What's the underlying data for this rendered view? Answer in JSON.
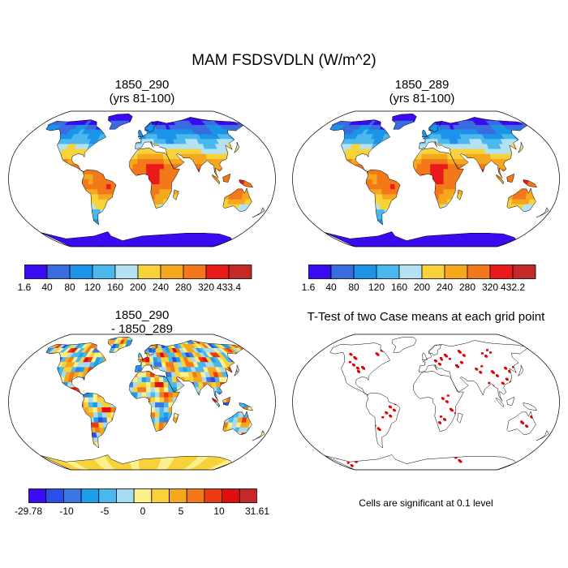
{
  "figure": {
    "title": "MAM FSDSVDLN (W/m^2)"
  },
  "panels": [
    {
      "id": "case1",
      "title_line1": "1850_290",
      "title_line2": "(yrs 81-100)",
      "colorbar": {
        "labels": [
          "1.6",
          "40",
          "80",
          "120",
          "160",
          "200",
          "240",
          "280",
          "320",
          "433.4"
        ],
        "colors": [
          "#3a0bf0",
          "#3a6be0",
          "#1b93e8",
          "#4ab8ec",
          "#b4e2f2",
          "#f7d23a",
          "#f5a81e",
          "#f2781a",
          "#eb1a1a",
          "#c42828"
        ]
      }
    },
    {
      "id": "case2",
      "title_line1": "1850_289",
      "title_line2": "(yrs 81-100)",
      "colorbar": {
        "labels": [
          "1.6",
          "40",
          "80",
          "120",
          "160",
          "200",
          "240",
          "280",
          "320",
          "432.2"
        ],
        "colors": [
          "#3a0bf0",
          "#3a6be0",
          "#1b93e8",
          "#4ab8ec",
          "#b4e2f2",
          "#f7d23a",
          "#f5a81e",
          "#f2781a",
          "#eb1a1a",
          "#c42828"
        ]
      }
    },
    {
      "id": "diff",
      "title_line1": "1850_290",
      "title_line2": "- 1850_289",
      "colorbar": {
        "labels": [
          "-29.78",
          "-10",
          "-5",
          "0",
          "5",
          "10",
          "31.61"
        ],
        "colors": [
          "#3a0bf0",
          "#2b4ee8",
          "#3a78e8",
          "#1e9ee8",
          "#4ab8ec",
          "#a8dcf0",
          "#fbf08c",
          "#f7d23a",
          "#f5a81e",
          "#f2781a",
          "#eb3a12",
          "#e00f0f",
          "#c42828"
        ]
      }
    },
    {
      "id": "ttest",
      "title_line1": "T-Test of two Case means at each grid point",
      "note": "Cells are significant at 0.1 level"
    }
  ]
}
